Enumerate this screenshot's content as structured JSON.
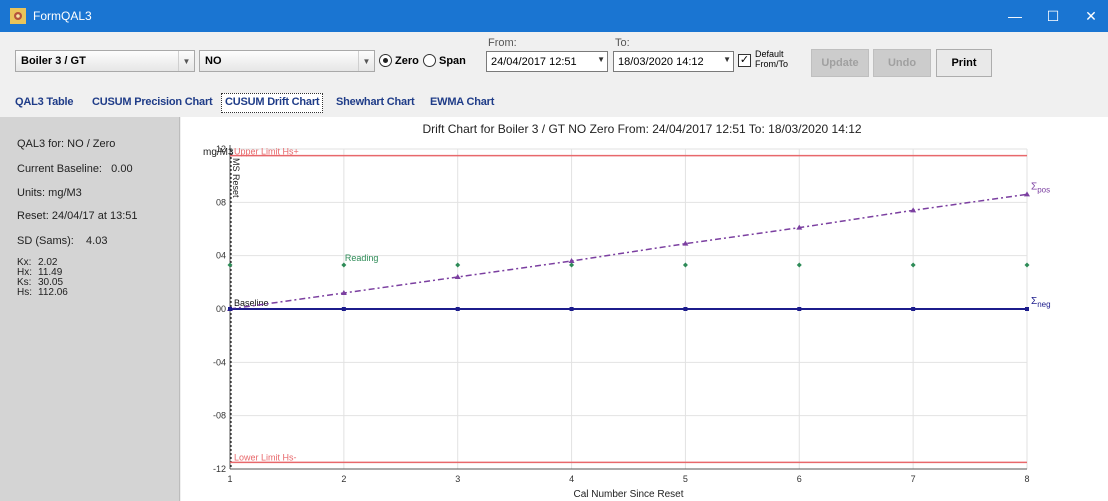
{
  "window": {
    "title": "FormQAL3",
    "controls": {
      "minimize": "—",
      "maximize": "☐",
      "close": "✕"
    }
  },
  "toolbar": {
    "boiler": "Boiler 3 / GT",
    "gas": "NO",
    "radio_zero": "Zero",
    "radio_span": "Span",
    "selected_mode": "Zero",
    "from_label": "From:",
    "to_label": "To:",
    "from_value": "24/04/2017 12:51",
    "to_value": "18/03/2020 14:12",
    "default_checked": true,
    "default_label": "Default From/To",
    "update_label": "Update",
    "undo_label": "Undo",
    "print_label": "Print"
  },
  "tabs": [
    {
      "label": "QAL3 Table"
    },
    {
      "label": "CUSUM Precision Chart"
    },
    {
      "label": "CUSUM Drift Chart",
      "active": true
    },
    {
      "label": "Shewhart Chart"
    },
    {
      "label": "EWMA Chart"
    }
  ],
  "info": {
    "qal3_for": "QAL3 for: NO / Zero",
    "current_baseline": "Current Baseline:   0.00",
    "units": "Units: mg/M3",
    "reset": "Reset: 24/04/17 at 13:51",
    "sd": "SD (Sams):    4.03",
    "kx": {
      "k": "Kx:",
      "v": "2.02"
    },
    "hx": {
      "k": "Hx:",
      "v": "11.49"
    },
    "ks": {
      "k": "Ks:",
      "v": "30.05"
    },
    "hs": {
      "k": "Hs:",
      "v": "112.06"
    }
  },
  "chart_data": {
    "type": "line",
    "title": "Drift Chart for Boiler 3 / GT NO Zero From: 24/04/2017 12:51 To: 18/03/2020 14:12",
    "xlabel": "Cal Number Since Reset",
    "ylabel": "mg/M3",
    "xlim": [
      1,
      8
    ],
    "ylim": [
      -12,
      12
    ],
    "x_ticks": [
      "1",
      "2",
      "3",
      "4",
      "5",
      "6",
      "7",
      "8"
    ],
    "y_ticks": [
      {
        "value": 12,
        "label": "12"
      },
      {
        "value": 8,
        "label": "08"
      },
      {
        "value": 4,
        "label": "04"
      },
      {
        "value": 0,
        "label": "00"
      },
      {
        "value": -4,
        "label": "-04"
      },
      {
        "value": -8,
        "label": "-08"
      },
      {
        "value": -12,
        "label": "-12"
      }
    ],
    "grid": true,
    "reference_lines": [
      {
        "label": "Upper Limit Hs+",
        "value": 11.5,
        "color": "#e8686b"
      },
      {
        "label": "Lower Limit Hs-",
        "value": -11.5,
        "color": "#e8686b"
      },
      {
        "label": "Baseline",
        "value": 0,
        "color": "#1c1c8c"
      }
    ],
    "vertical_label": "MS Reset",
    "series": [
      {
        "name": "Σpos",
        "color": "#7b3fa0",
        "x": [
          1,
          2,
          3,
          4,
          5,
          6,
          7,
          8
        ],
        "values": [
          0.0,
          1.2,
          2.4,
          3.6,
          4.9,
          6.1,
          7.4,
          8.6
        ]
      },
      {
        "name": "Σneg",
        "color": "#1c1c8c",
        "x": [
          1,
          2,
          3,
          4,
          5,
          6,
          7,
          8
        ],
        "values": [
          0,
          0,
          0,
          0,
          0,
          0,
          0,
          0
        ]
      },
      {
        "name": "Reading",
        "color": "#2e8b57",
        "x": [
          1,
          2,
          3,
          4,
          5,
          6,
          7,
          8
        ],
        "values": [
          3.3,
          3.3,
          3.3,
          3.3,
          3.3,
          3.3,
          3.3,
          3.3
        ]
      }
    ]
  }
}
